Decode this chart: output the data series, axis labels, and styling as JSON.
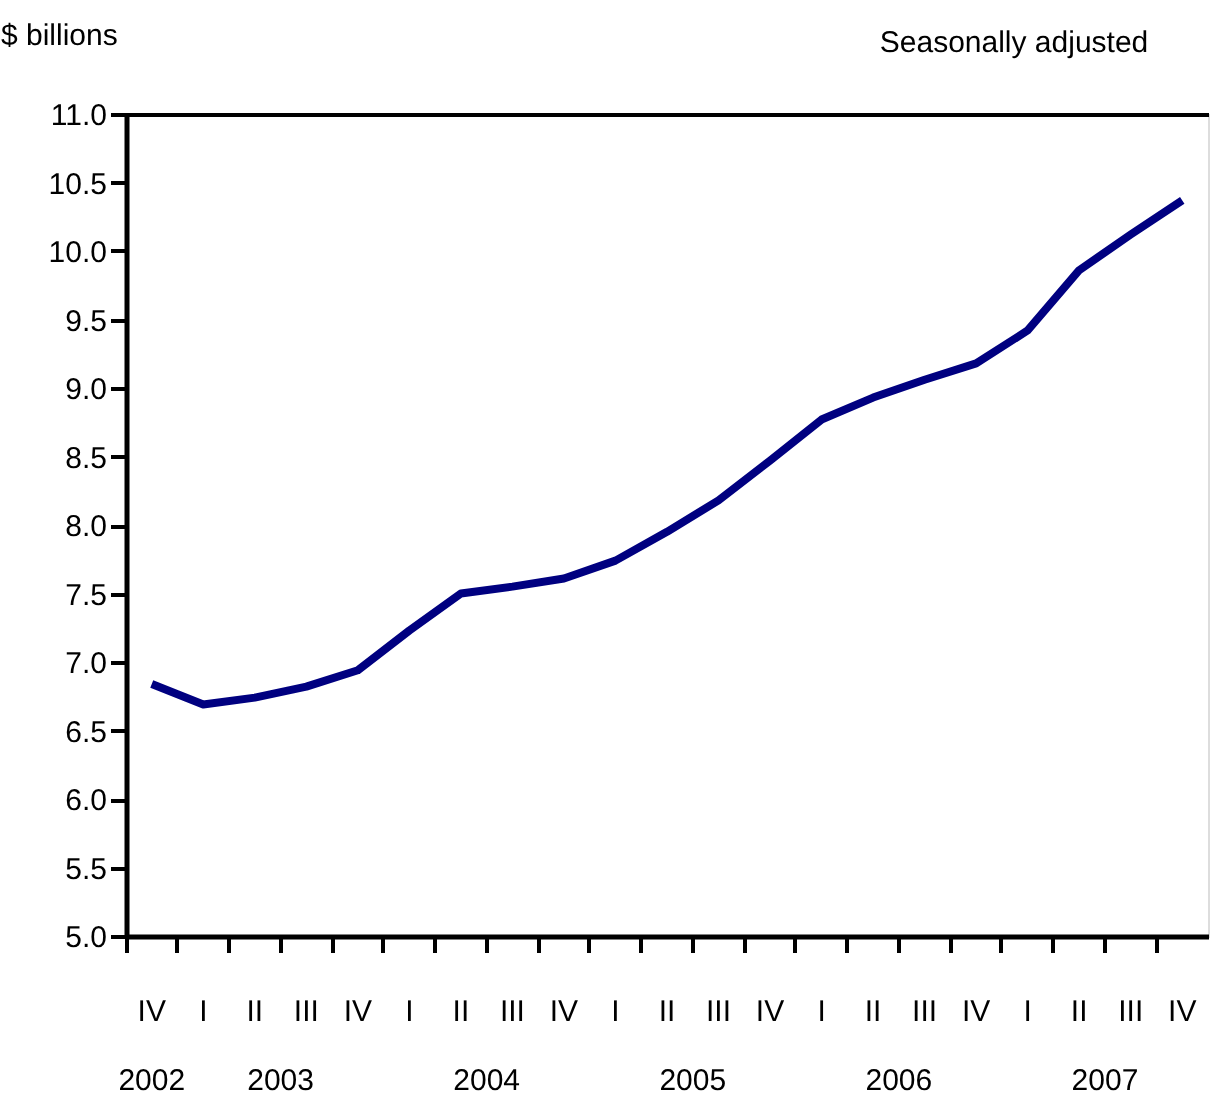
{
  "chart_data": {
    "type": "line",
    "ylabel": "$ billions",
    "subtitle": "Seasonally adjusted",
    "categories": [
      "IV",
      "I",
      "II",
      "III",
      "IV",
      "I",
      "II",
      "III",
      "IV",
      "I",
      "II",
      "III",
      "IV",
      "I",
      "II",
      "III",
      "IV",
      "I",
      "II",
      "III",
      "IV"
    ],
    "annotations": [
      "2002",
      "2003",
      "2004",
      "2005",
      "2006",
      "2007"
    ],
    "series": [
      {
        "color": "#000080",
        "values": [
          6.84,
          6.69,
          6.74,
          6.82,
          6.94,
          7.23,
          7.5,
          7.55,
          7.61,
          7.74,
          7.95,
          8.18,
          8.47,
          8.77,
          8.93,
          9.06,
          9.18,
          9.42,
          9.86,
          10.12,
          10.37
        ]
      }
    ],
    "ylim": [
      5.0,
      11.0
    ],
    "yticks": [
      {
        "value": 5,
        "label": "5.0"
      },
      {
        "value": 5.5,
        "label": "5.5"
      },
      {
        "value": 6,
        "label": "6.0"
      },
      {
        "value": 6.5,
        "label": "6.5"
      },
      {
        "value": 7,
        "label": "7.0"
      },
      {
        "value": 7.5,
        "label": "7.5"
      },
      {
        "value": 8,
        "label": "8.0"
      },
      {
        "value": 8.5,
        "label": "8.5"
      },
      {
        "value": 9,
        "label": "9.0"
      },
      {
        "value": 9.5,
        "label": "9.5"
      },
      {
        "value": 10,
        "label": "10.0"
      },
      {
        "value": 10.5,
        "label": "10.5"
      },
      {
        "value": 11,
        "label": "11.0"
      }
    ],
    "grid": false,
    "legend": false,
    "marker": "none",
    "line_style": "solid"
  }
}
